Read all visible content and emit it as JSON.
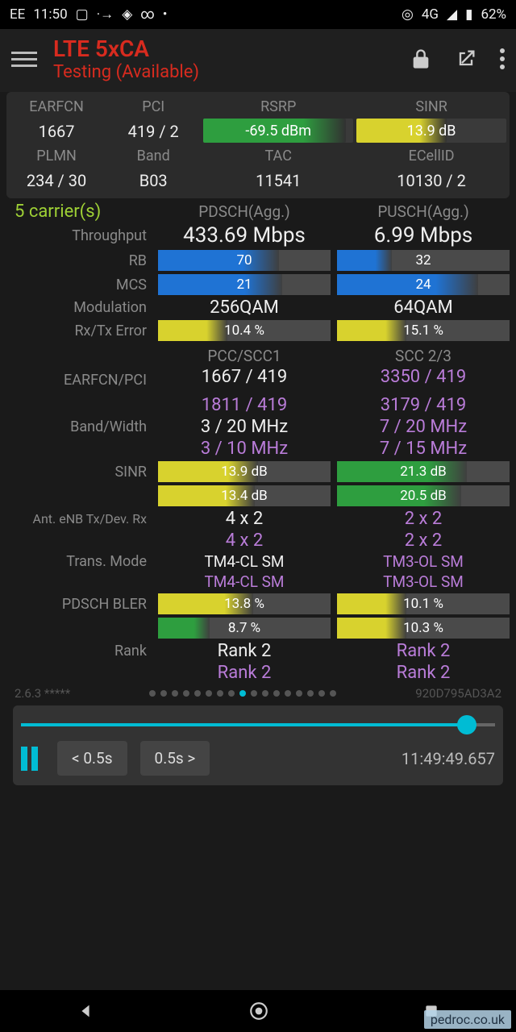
{
  "status": {
    "carrier": "EE",
    "time": "11:50",
    "net": "4G",
    "battery": "62%"
  },
  "header": {
    "title": "LTE 5xCA",
    "subtitle": "Testing (Available)"
  },
  "top_card": {
    "r1_labels": [
      "EARFCN",
      "PCI",
      "RSRP",
      "SINR"
    ],
    "earfcn": "1667",
    "pci": "419 / 2",
    "rsrp": {
      "text": "-69.5 dBm",
      "fill_pct": 95,
      "color": "#2e9e3f"
    },
    "sinr": {
      "text": "13.9 dB",
      "fill_pct": 60,
      "color": "#d8d22e"
    },
    "r2_labels": [
      "PLMN",
      "Band",
      "TAC",
      "ECellID"
    ],
    "plmn": "234 / 30",
    "band": "B03",
    "tac": "11541",
    "ecellid": "10130 / 2"
  },
  "carriers_line": "5 carrier(s)",
  "col_heads": {
    "c1": "PDSCH(Agg.)",
    "c2": "PUSCH(Agg.)"
  },
  "rows": {
    "throughput": {
      "label": "Throughput",
      "c1": "433.69 Mbps",
      "c2": "6.99 Mbps"
    },
    "rb": {
      "label": "RB",
      "c1": {
        "text": "70",
        "fill_pct": 70,
        "color": "#1f73d4"
      },
      "c2": {
        "text": "32",
        "fill_pct": 32,
        "color": "#1f73d4"
      }
    },
    "mcs": {
      "label": "MCS",
      "c1": {
        "text": "21",
        "fill_pct": 72,
        "color": "#1f73d4"
      },
      "c2": {
        "text": "24",
        "fill_pct": 82,
        "color": "#1f73d4"
      }
    },
    "modulation": {
      "label": "Modulation",
      "c1": "256QAM",
      "c2": "64QAM"
    },
    "rxtx": {
      "label": "Rx/Tx Error",
      "c1": {
        "text": "10.4 %",
        "fill_pct": 40,
        "color": "#d8d22e"
      },
      "c2": {
        "text": "15.1 %",
        "fill_pct": 40,
        "color": "#d8d22e"
      }
    }
  },
  "section2_heads": {
    "c1": "PCC/SCC1",
    "c2": "SCC 2/3"
  },
  "earfcn_pci": {
    "label": "EARFCN/PCI",
    "c1a": "1667 / 419",
    "c2a": "3350 / 419",
    "c1b": "1811 / 419",
    "c2b": "3179 / 419"
  },
  "band_width": {
    "label": "Band/Width",
    "c1a": "3 / 20 MHz",
    "c2a": "7 / 20 MHz",
    "c1b": "3 / 10 MHz",
    "c2b": "7 / 15 MHz"
  },
  "sinr2": {
    "label": "SINR",
    "c1a": {
      "text": "13.9 dB",
      "fill_pct": 58,
      "color": "#d8d22e"
    },
    "c2a": {
      "text": "21.3 dB",
      "fill_pct": 75,
      "color": "#2e9e3f"
    },
    "c1b": {
      "text": "13.4 dB",
      "fill_pct": 56,
      "color": "#d8d22e"
    },
    "c2b": {
      "text": "20.5 dB",
      "fill_pct": 72,
      "color": "#2e9e3f"
    }
  },
  "ant": {
    "label": "Ant. eNB Tx/Dev. Rx",
    "c1a": "4 x 2",
    "c2a": "2 x 2",
    "c1b": "4 x 2",
    "c2b": "2 x 2"
  },
  "trans_mode": {
    "label": "Trans. Mode",
    "c1a": "TM4-CL SM",
    "c2a": "TM3-OL SM",
    "c1b": "TM4-CL SM",
    "c2b": "TM3-OL SM"
  },
  "bler": {
    "label": "PDSCH BLER",
    "c1a": {
      "text": "13.8 %",
      "fill_pct": 55,
      "color": "#d8d22e"
    },
    "c2a": {
      "text": "10.1 %",
      "fill_pct": 40,
      "color": "#d8d22e"
    },
    "c1b": {
      "text": "8.7 %",
      "fill_pct": 30,
      "color": "#2e9e3f"
    },
    "c2b": {
      "text": "10.3 %",
      "fill_pct": 40,
      "color": "#d8d22e"
    }
  },
  "rank": {
    "label": "Rank",
    "c1a": "Rank 2",
    "c2a": "Rank 2",
    "c1b": "Rank 2",
    "c2b": "Rank 2"
  },
  "footer": {
    "version": "2.6.3 *****",
    "dot_count": 17,
    "active_dot": 8,
    "hash": "920D795AD3A2"
  },
  "player": {
    "progress_pct": 94,
    "prev": "< 0.5s",
    "next": "0.5s >",
    "time": "11:49:49.657"
  },
  "watermark": "pedroc.co.uk"
}
